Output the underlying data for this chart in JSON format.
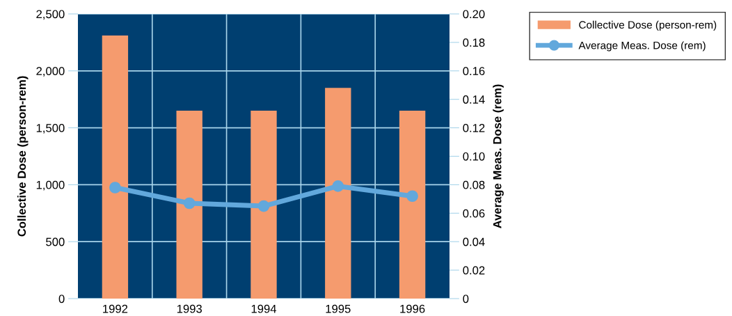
{
  "chart_data": {
    "type": "bar",
    "categories": [
      "1992",
      "1993",
      "1994",
      "1995",
      "1996"
    ],
    "series": [
      {
        "name": "Collective Dose (person-rem)",
        "color": "#f59b6e",
        "values": [
          2310,
          1650,
          1650,
          1850,
          1650
        ]
      },
      {
        "name": "Average Meas. Dose (rem)",
        "type": "line",
        "axis": "y2",
        "color": "#62a8dc",
        "values": [
          0.078,
          0.067,
          0.065,
          0.079,
          0.072
        ]
      }
    ],
    "ylabel": "Collective Dose (person-rem)",
    "y2label": "Average Meas. Dose (rem)",
    "ylim": [
      0,
      2500
    ],
    "yticks": [
      {
        "value": 0,
        "label": "0"
      },
      {
        "value": 500,
        "label": "500"
      },
      {
        "value": 1000,
        "label": "1,000"
      },
      {
        "value": 1500,
        "label": "1,500"
      },
      {
        "value": 2000,
        "label": "2,000"
      },
      {
        "value": 2500,
        "label": "2,500"
      }
    ],
    "y2lim": [
      0,
      0.2
    ],
    "y2ticks": [
      {
        "value": 0,
        "label": "0"
      },
      {
        "value": 0.02,
        "label": "0.02"
      },
      {
        "value": 0.04,
        "label": "0.04"
      },
      {
        "value": 0.06,
        "label": "0.06"
      },
      {
        "value": 0.08,
        "label": "0.08"
      },
      {
        "value": 0.1,
        "label": "0.10"
      },
      {
        "value": 0.12,
        "label": "0.12"
      },
      {
        "value": 0.14,
        "label": "0.14"
      },
      {
        "value": 0.16,
        "label": "0.16"
      },
      {
        "value": 0.18,
        "label": "0.18"
      },
      {
        "value": 0.2,
        "label": "0.20"
      }
    ],
    "grid": true,
    "legend": "top right",
    "marker": "circle",
    "line_style": "solid"
  }
}
